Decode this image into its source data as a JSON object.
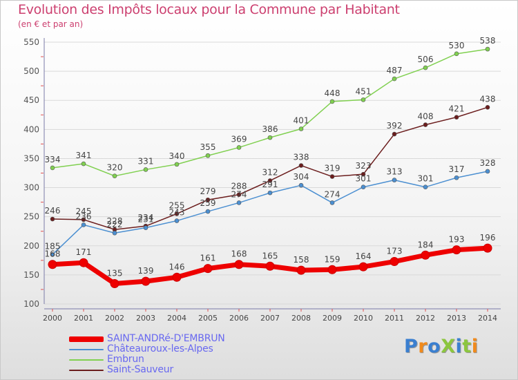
{
  "title": "Evolution des Impôts locaux pour la Commune par Habitant",
  "subtitle": "(en € et par an)",
  "logo": "ProXiti",
  "chart_data": {
    "type": "line",
    "title": "Evolution des Impôts locaux pour la Commune par Habitant",
    "subtitle": "(en € et par an)",
    "xlabel": "",
    "ylabel": "",
    "x": [
      2000,
      2001,
      2002,
      2003,
      2004,
      2005,
      2006,
      2007,
      2008,
      2009,
      2010,
      2011,
      2012,
      2013,
      2014
    ],
    "ylim": [
      100,
      550
    ],
    "yticks": [
      100,
      150,
      200,
      250,
      300,
      350,
      400,
      450,
      500,
      550
    ],
    "grid": "horizontal",
    "legend_position": "bottom-left",
    "series": [
      {
        "name": "Saint-Sauveur",
        "color": "#6b1d1d",
        "values": [
          246,
          245,
          228,
          234,
          255,
          279,
          288,
          312,
          338,
          319,
          323,
          392,
          408,
          421,
          438
        ]
      },
      {
        "name": "Châteauroux-les-Alpes",
        "color": "#4b8fd1",
        "values": [
          185,
          236,
          222,
          231,
          243,
          259,
          274,
          291,
          304,
          274,
          301,
          313,
          301,
          317,
          328
        ]
      },
      {
        "name": "Embrun",
        "color": "#80d050",
        "values": [
          334,
          341,
          320,
          331,
          340,
          355,
          369,
          386,
          401,
          448,
          451,
          487,
          506,
          530,
          538
        ]
      },
      {
        "name": "SAINT-ANDRé-D'EMBRUN",
        "color": "#ee0000",
        "highlight": true,
        "values": [
          168,
          171,
          135,
          139,
          146,
          161,
          168,
          165,
          158,
          159,
          164,
          173,
          184,
          193,
          196
        ]
      }
    ],
    "legend": [
      {
        "name": "SAINT-ANDRé-D'EMBRUN",
        "color": "#ee0000"
      },
      {
        "name": "Châteauroux-les-Alpes",
        "color": "#4b8fd1"
      },
      {
        "name": "Embrun",
        "color": "#80d050"
      },
      {
        "name": "Saint-Sauveur",
        "color": "#6b1d1d"
      }
    ]
  }
}
